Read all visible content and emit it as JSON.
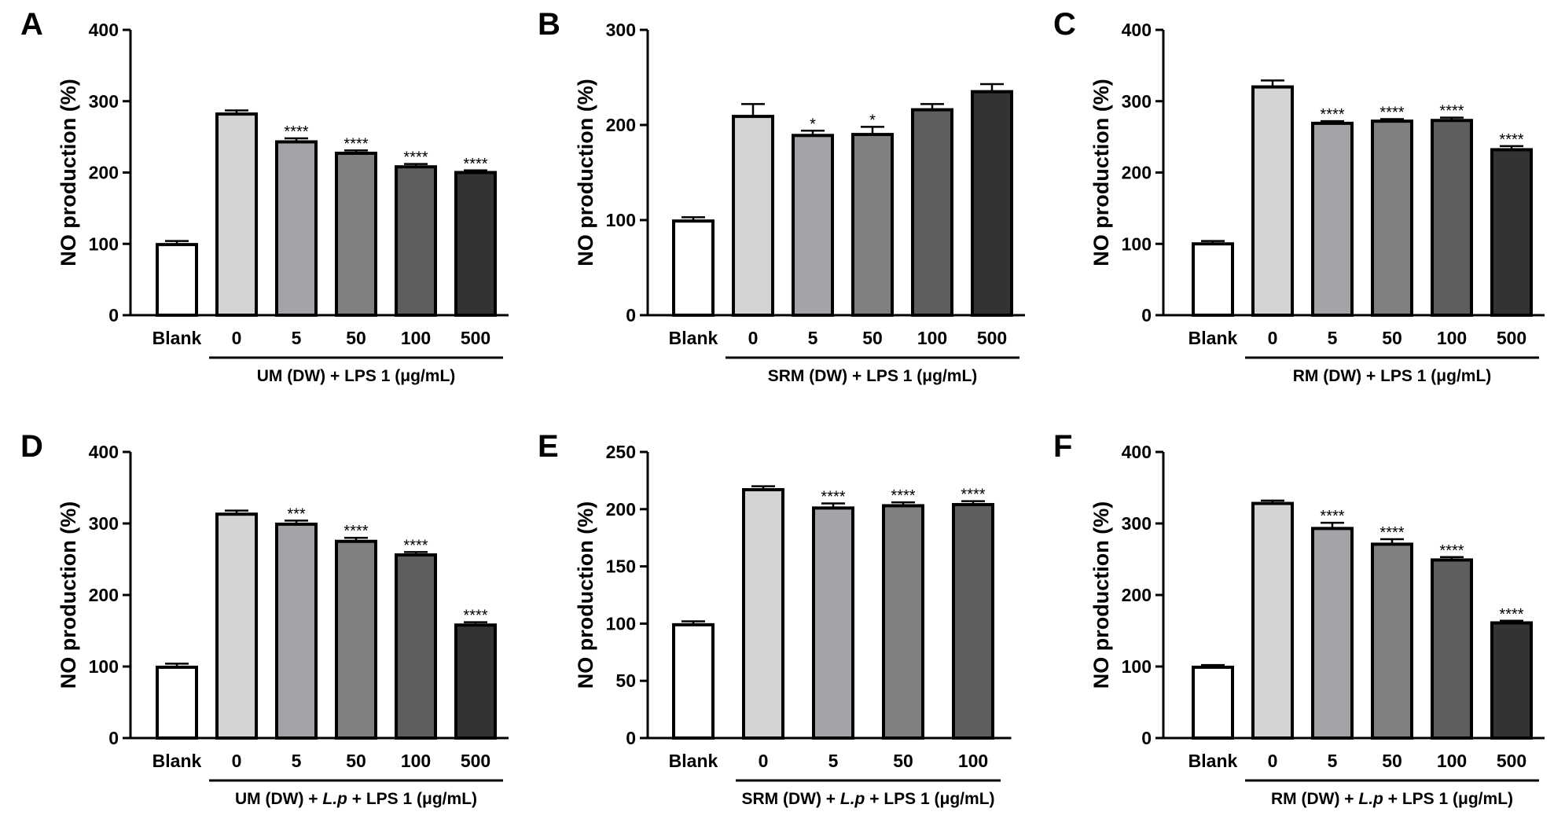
{
  "chart_data": [
    {
      "panel": "A",
      "type": "bar",
      "ylabel": "NO production (%)",
      "ylim": [
        0,
        400
      ],
      "yticks": [
        0,
        100,
        200,
        300,
        400
      ],
      "categories": [
        "Blank",
        "0",
        "5",
        "50",
        "100",
        "500"
      ],
      "values": [
        99,
        282,
        243,
        227,
        208,
        200
      ],
      "errors": [
        5,
        5,
        5,
        4,
        4,
        3
      ],
      "significance": [
        "",
        "",
        "****",
        "****",
        "****",
        "****"
      ],
      "colors": [
        "#ffffff",
        "#d4d4d4",
        "#a4a4a8",
        "#808080",
        "#5e5e5e",
        "#333333"
      ],
      "group_label": "UM (DW) + LPS 1 (μg/mL)"
    },
    {
      "panel": "B",
      "type": "bar",
      "ylabel": "NO production (%)",
      "ylim": [
        0,
        300
      ],
      "yticks": [
        0,
        100,
        200,
        300
      ],
      "categories": [
        "Blank",
        "0",
        "5",
        "50",
        "100",
        "500"
      ],
      "values": [
        99,
        209,
        189,
        190,
        216,
        235
      ],
      "errors": [
        4,
        13,
        5,
        8,
        6,
        8
      ],
      "significance": [
        "",
        "",
        "*",
        "*",
        "",
        ""
      ],
      "colors": [
        "#ffffff",
        "#d4d4d4",
        "#a4a4a8",
        "#808080",
        "#5e5e5e",
        "#333333"
      ],
      "group_label": "SRM (DW) + LPS 1 (μg/mL)"
    },
    {
      "panel": "C",
      "type": "bar",
      "ylabel": "NO production (%)",
      "ylim": [
        0,
        400
      ],
      "yticks": [
        0,
        100,
        200,
        300,
        400
      ],
      "categories": [
        "Blank",
        "0",
        "5",
        "50",
        "100",
        "500"
      ],
      "values": [
        100,
        320,
        269,
        272,
        273,
        232
      ],
      "errors": [
        4,
        9,
        3,
        3,
        4,
        5
      ],
      "significance": [
        "",
        "",
        "****",
        "****",
        "****",
        "****"
      ],
      "colors": [
        "#ffffff",
        "#d4d4d4",
        "#a4a4a8",
        "#808080",
        "#5e5e5e",
        "#333333"
      ],
      "group_label": "RM (DW) + LPS 1 (μg/mL)"
    },
    {
      "panel": "D",
      "type": "bar",
      "ylabel": "NO production (%)",
      "ylim": [
        0,
        400
      ],
      "yticks": [
        0,
        100,
        200,
        300,
        400
      ],
      "categories": [
        "Blank",
        "0",
        "5",
        "50",
        "100",
        "500"
      ],
      "values": [
        99,
        313,
        299,
        275,
        256,
        158
      ],
      "errors": [
        5,
        5,
        5,
        5,
        4,
        4
      ],
      "significance": [
        "",
        "",
        "***",
        "****",
        "****",
        "****"
      ],
      "colors": [
        "#ffffff",
        "#d4d4d4",
        "#a4a4a8",
        "#808080",
        "#5e5e5e",
        "#333333"
      ],
      "group_label_parts": [
        "UM (DW) + ",
        "L.p",
        " + LPS 1 (μg/mL)"
      ]
    },
    {
      "panel": "E",
      "type": "bar",
      "ylabel": "NO production (%)",
      "ylim": [
        0,
        250
      ],
      "yticks": [
        0,
        50,
        100,
        150,
        200,
        250
      ],
      "categories": [
        "Blank",
        "0",
        "5",
        "50",
        "100"
      ],
      "values": [
        99,
        217,
        201,
        203,
        204
      ],
      "errors": [
        3,
        3,
        4,
        3,
        3
      ],
      "significance": [
        "",
        "",
        "****",
        "****",
        "****"
      ],
      "colors": [
        "#ffffff",
        "#d4d4d4",
        "#a4a4a8",
        "#808080",
        "#5e5e5e"
      ],
      "group_label_parts": [
        "SRM (DW) + ",
        "L.p",
        " + LPS 1 (μg/mL)"
      ]
    },
    {
      "panel": "F",
      "type": "bar",
      "ylabel": "NO production (%)",
      "ylim": [
        0,
        400
      ],
      "yticks": [
        0,
        100,
        200,
        300,
        400
      ],
      "categories": [
        "Blank",
        "0",
        "5",
        "50",
        "100",
        "500"
      ],
      "values": [
        99,
        328,
        293,
        271,
        249,
        161
      ],
      "errors": [
        3,
        4,
        8,
        7,
        4,
        3
      ],
      "significance": [
        "",
        "",
        "****",
        "****",
        "****",
        "****"
      ],
      "colors": [
        "#ffffff",
        "#d4d4d4",
        "#a4a4a8",
        "#808080",
        "#5e5e5e",
        "#333333"
      ],
      "group_label_parts": [
        "RM (DW) + ",
        "L.p",
        " + LPS 1 (μg/mL)"
      ]
    }
  ]
}
